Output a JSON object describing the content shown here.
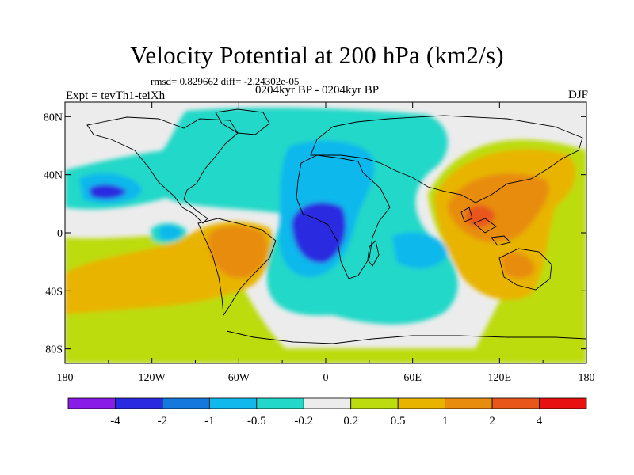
{
  "title": "Velocity Potential at 200 hPa (km2/s)",
  "stats_line": "rmsd= 0.829662 diff= -2.24302e-05",
  "experiment": "Expt = tevTh1-teiXh",
  "period": "0204kyr BP - 0204kyr BP",
  "season": "DJF",
  "map": {
    "projection": "cylindrical-equidistant",
    "lon_range": [
      -180,
      180
    ],
    "lat_range": [
      -90,
      90
    ],
    "lon_ticks": [
      {
        "value": -180,
        "label": "180"
      },
      {
        "value": -120,
        "label": "120W"
      },
      {
        "value": -60,
        "label": "60W"
      },
      {
        "value": 0,
        "label": "0"
      },
      {
        "value": 60,
        "label": "60E"
      },
      {
        "value": 120,
        "label": "120E"
      },
      {
        "value": 180,
        "label": "180"
      }
    ],
    "lat_ticks": [
      {
        "value": 80,
        "label": "80N"
      },
      {
        "value": 40,
        "label": "40N"
      },
      {
        "value": 0,
        "label": "0"
      },
      {
        "value": -40,
        "label": "40S"
      },
      {
        "value": -80,
        "label": "80S"
      }
    ]
  },
  "colorbar": {
    "colors": [
      "#8a1ce8",
      "#2a2ae0",
      "#1578dc",
      "#10b8ec",
      "#22d8c8",
      "#ececec",
      "#bcdc10",
      "#e8b400",
      "#e88c0e",
      "#e8561a",
      "#e81010"
    ],
    "labels": [
      "-4",
      "-2",
      "-1",
      "-0.5",
      "-0.2",
      "0.2",
      "0.5",
      "1",
      "2",
      "4"
    ]
  },
  "colors": {
    "background_field": "#ececec",
    "coastline": "#000000"
  }
}
